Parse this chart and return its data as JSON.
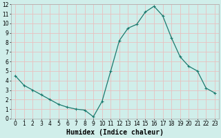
{
  "x": [
    0,
    1,
    2,
    3,
    4,
    5,
    6,
    7,
    8,
    9,
    10,
    11,
    12,
    13,
    14,
    15,
    16,
    17,
    18,
    19,
    20,
    21,
    22,
    23
  ],
  "y": [
    4.5,
    3.5,
    3.0,
    2.5,
    2.0,
    1.5,
    1.2,
    1.0,
    0.9,
    0.2,
    1.8,
    5.0,
    8.2,
    9.5,
    9.9,
    11.2,
    11.8,
    10.8,
    8.5,
    6.5,
    5.5,
    5.0,
    3.2,
    2.7
  ],
  "line_color": "#1a7a6e",
  "marker": "+",
  "marker_size": 3,
  "marker_lw": 0.8,
  "line_width": 0.9,
  "bg_color": "#d0eeea",
  "plot_bg_color": "#d0eeea",
  "grid_color": "#e8c0c0",
  "xlabel": "Humidex (Indice chaleur)",
  "xlim": [
    -0.5,
    23.5
  ],
  "ylim": [
    0,
    12
  ],
  "xticks": [
    0,
    1,
    2,
    3,
    4,
    5,
    6,
    7,
    8,
    9,
    10,
    11,
    12,
    13,
    14,
    15,
    16,
    17,
    18,
    19,
    20,
    21,
    22,
    23
  ],
  "yticks": [
    0,
    1,
    2,
    3,
    4,
    5,
    6,
    7,
    8,
    9,
    10,
    11,
    12
  ],
  "tick_label_size": 5.5,
  "xlabel_size": 7.0,
  "xlabel_weight": "bold",
  "xlabel_family": "monospace"
}
